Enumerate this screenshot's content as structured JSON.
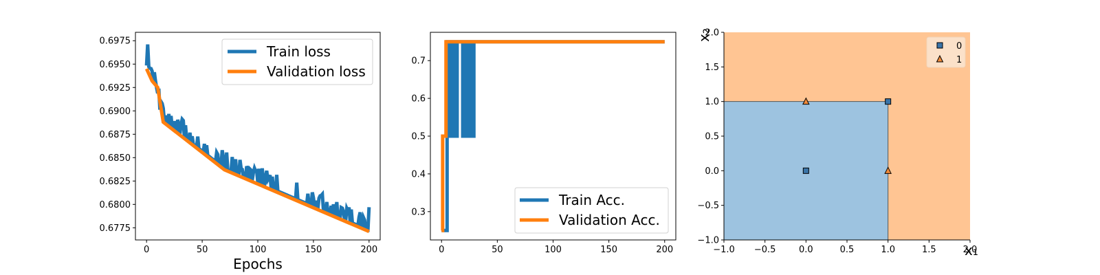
{
  "chart_data": [
    {
      "type": "line",
      "xlabel": "Epochs",
      "ylabel": "",
      "xlim": [
        -10,
        210
      ],
      "ylim": [
        0.6762,
        0.6984
      ],
      "xticks": [
        0,
        50,
        100,
        150,
        200
      ],
      "xtick_labels": [
        "0",
        "50",
        "100",
        "150",
        "200"
      ],
      "yticks": [
        0.6775,
        0.68,
        0.6825,
        0.685,
        0.6875,
        0.69,
        0.6925,
        0.695,
        0.6975
      ],
      "ytick_labels": [
        "0.6775",
        "0.6800",
        "0.6825",
        "0.6850",
        "0.6875",
        "0.6900",
        "0.6925",
        "0.6950",
        "0.6975"
      ],
      "legend_position": "upper-right",
      "series": [
        {
          "name": "Train loss",
          "color": "#1f77b4",
          "pattern": "noisy-decay",
          "start": 0.6947,
          "end": 0.6797,
          "peak": 0.6971,
          "spike_height": 0.0014
        },
        {
          "name": "Validation loss",
          "color": "#ff7f0e",
          "x": [
            0,
            5,
            10,
            15,
            70,
            200
          ],
          "y": [
            0.6945,
            0.6932,
            0.6925,
            0.6888,
            0.6837,
            0.6771
          ]
        }
      ]
    },
    {
      "type": "line",
      "xlabel": "",
      "ylabel": "",
      "xlim": [
        -10,
        210
      ],
      "ylim": [
        0.225,
        0.775
      ],
      "xticks": [
        0,
        50,
        100,
        150,
        200
      ],
      "xtick_labels": [
        "0",
        "50",
        "100",
        "150",
        "200"
      ],
      "yticks": [
        0.3,
        0.4,
        0.5,
        0.6,
        0.7
      ],
      "ytick_labels": [
        "0.3",
        "0.4",
        "0.5",
        "0.6",
        "0.7"
      ],
      "legend_position": "lower-right",
      "series": [
        {
          "name": "Train Acc.",
          "color": "#1f77b4",
          "x": [
            0,
            5,
            5,
            6,
            6,
            9,
            9,
            10,
            10,
            11,
            11,
            13,
            13,
            14,
            14,
            19,
            19,
            20,
            20,
            21,
            21,
            24,
            24,
            25,
            25,
            26,
            26,
            28,
            28,
            29,
            29,
            200
          ],
          "y": [
            0.25,
            0.25,
            0.75,
            0.75,
            0.5,
            0.5,
            0.75,
            0.75,
            0.5,
            0.5,
            0.75,
            0.75,
            0.5,
            0.5,
            0.75,
            0.75,
            0.5,
            0.5,
            0.75,
            0.75,
            0.5,
            0.5,
            0.75,
            0.75,
            0.5,
            0.5,
            0.75,
            0.75,
            0.5,
            0.5,
            0.75,
            0.75
          ]
        },
        {
          "name": "Validation Acc.",
          "color": "#ff7f0e",
          "x": [
            0,
            1,
            1,
            4,
            4,
            200
          ],
          "y": [
            0.25,
            0.25,
            0.5,
            0.5,
            0.75,
            0.75
          ]
        }
      ]
    },
    {
      "type": "scatter",
      "xlabel": "x₁",
      "ylabel": "x₂",
      "xlim": [
        -1,
        2
      ],
      "ylim": [
        -1,
        2
      ],
      "xticks": [
        -1,
        -0.5,
        0,
        0.5,
        1,
        1.5,
        2
      ],
      "xtick_labels": [
        "−1.0",
        "−0.5",
        "0.0",
        "0.5",
        "1.0",
        "1.5",
        "2.0"
      ],
      "yticks": [
        -1,
        -0.5,
        0,
        0.5,
        1,
        1.5,
        2
      ],
      "ytick_labels": [
        "−1.0",
        "−0.5",
        "0.0",
        "0.5",
        "1.0",
        "1.5",
        "2.0"
      ],
      "legend_position": "upper-right",
      "regions": [
        {
          "class": "0",
          "color": "#9dc3e0",
          "x_range": [
            -1,
            1
          ],
          "y_range": [
            -1,
            1
          ]
        },
        {
          "class": "1",
          "color": "#ffc593",
          "x_range": [
            -1,
            2
          ],
          "y_range": [
            -1,
            2
          ]
        }
      ],
      "series": [
        {
          "name": "0",
          "marker": "square",
          "color": "#3a74a8",
          "points": [
            [
              0,
              0
            ],
            [
              1,
              1
            ]
          ]
        },
        {
          "name": "1",
          "marker": "triangle",
          "color": "#f08a3a",
          "points": [
            [
              0,
              1
            ],
            [
              1,
              0
            ]
          ]
        }
      ]
    }
  ]
}
